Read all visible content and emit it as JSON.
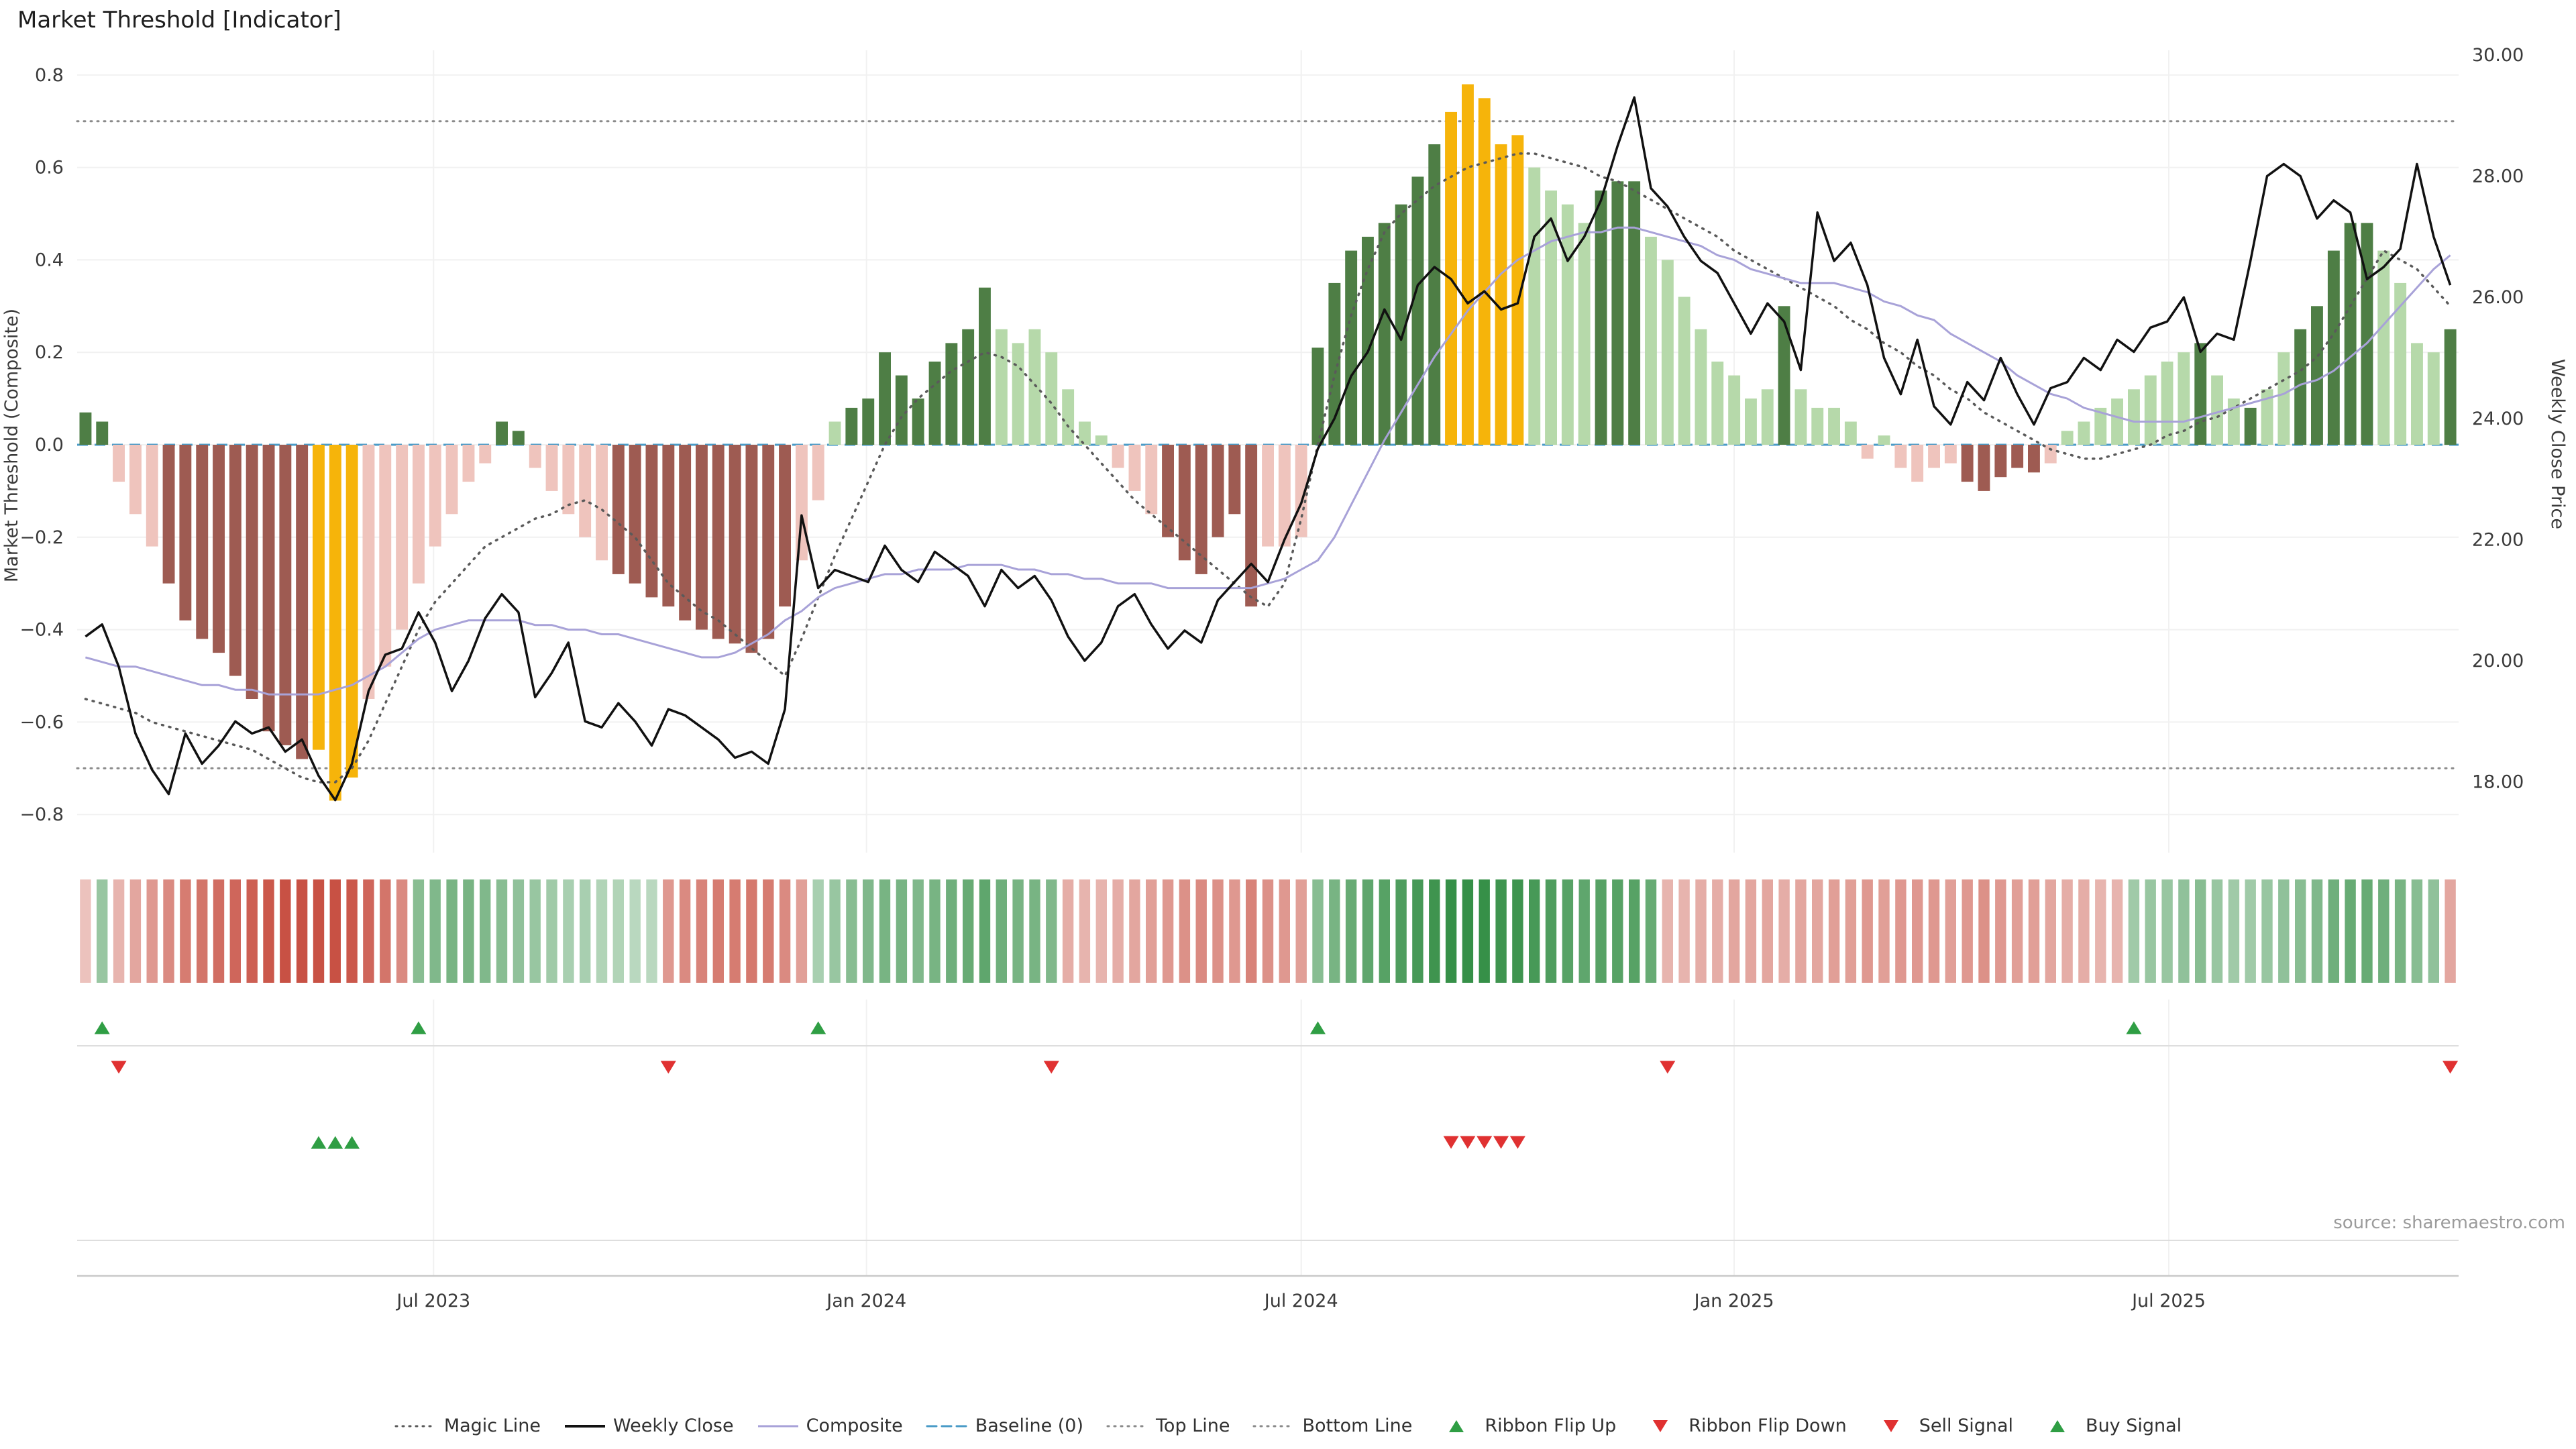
{
  "title": "Market Threshold [Indicator]",
  "source": "source: sharemaestro.com",
  "axes": {
    "left_label": "Market Threshold (Composite)",
    "right_label": "Weekly Close Price"
  },
  "colors": {
    "weekly_close": "#111111",
    "composite_line": "#a8a2d8",
    "magic_line": "#5a5a5a",
    "baseline": "#4a9bc7",
    "top_bottom_line": "#8a8a8a",
    "ribbon_green": "#2e8b40",
    "ribbon_red": "#c64a3c",
    "signal_green": "#2f9e44",
    "signal_red": "#e03131",
    "grid": "#f1f1f1",
    "panel_line": "#dedede",
    "axis_text": "#3a3a3a"
  },
  "legend": {
    "items": [
      {
        "id": "magic-line",
        "label": "Magic Line",
        "type": "line",
        "color": "#5a5a5a",
        "dash": "2 8",
        "weight": 3
      },
      {
        "id": "weekly-close",
        "label": "Weekly Close",
        "type": "line",
        "color": "#111111",
        "weight": 4
      },
      {
        "id": "composite",
        "label": "Composite",
        "type": "line",
        "color": "#a8a2d8",
        "weight": 3
      },
      {
        "id": "baseline",
        "label": "Baseline (0)",
        "type": "line",
        "color": "#4a9bc7",
        "dash": "14 8",
        "weight": 3
      },
      {
        "id": "top-line",
        "label": "Top Line",
        "type": "line",
        "color": "#8a8a8a",
        "dash": "2 8",
        "weight": 3
      },
      {
        "id": "bottom-line",
        "label": "Bottom Line",
        "type": "line",
        "color": "#8a8a8a",
        "dash": "2 8",
        "weight": 3
      },
      {
        "id": "ribbon-flip-up",
        "label": "Ribbon Flip Up",
        "type": "tri-up",
        "color": "#2f9e44"
      },
      {
        "id": "ribbon-flip-down",
        "label": "Ribbon Flip Down",
        "type": "tri-down",
        "color": "#e03131"
      },
      {
        "id": "sell-signal",
        "label": "Sell Signal",
        "type": "tri-down",
        "color": "#e03131"
      },
      {
        "id": "buy-signal",
        "label": "Buy Signal",
        "type": "tri-up",
        "color": "#2f9e44"
      }
    ]
  },
  "chart_data": {
    "type": "combo",
    "title": "Market Threshold [Indicator]",
    "left_ylim": [
      -0.8,
      0.8
    ],
    "right_ylim": [
      18,
      30
    ],
    "top_line": 0.7,
    "bottom_line": -0.7,
    "baseline": 0,
    "left_ticks": [
      [
        0.8,
        "0.8"
      ],
      [
        0.6,
        "0.6"
      ],
      [
        0.4,
        "0.4"
      ],
      [
        0.2,
        "0.2"
      ],
      [
        0,
        "0.0"
      ],
      [
        -0.2,
        "−0.2"
      ],
      [
        -0.4,
        "−0.4"
      ],
      [
        -0.6,
        "−0.6"
      ],
      [
        -0.8,
        "−0.8"
      ]
    ],
    "right_ticks": [
      [
        30,
        "30.00"
      ],
      [
        28,
        "28.00"
      ],
      [
        26,
        "26.00"
      ],
      [
        24,
        "24.00"
      ],
      [
        22,
        "22.00"
      ],
      [
        20,
        "20.00"
      ],
      [
        18,
        "18.00"
      ]
    ],
    "x_ticks": [
      [
        20.9,
        "Jul 2023"
      ],
      [
        46.9,
        "Jan 2024"
      ],
      [
        73,
        "Jul 2024"
      ],
      [
        99,
        "Jan 2025"
      ],
      [
        125.1,
        "Jul 2025"
      ]
    ],
    "composite_bars": {
      "palette": {
        "dg": "#4e7e45",
        "lg": "#b6d9aa",
        "dr": "#9e5b52",
        "lr": "#efc4bd",
        "or": "#f6b40a"
      },
      "values": [
        0.07,
        0.05,
        -0.08,
        -0.15,
        -0.22,
        -0.3,
        -0.38,
        -0.42,
        -0.45,
        -0.5,
        -0.55,
        -0.62,
        -0.65,
        -0.68,
        -0.66,
        -0.77,
        -0.72,
        -0.55,
        -0.48,
        -0.4,
        -0.3,
        -0.22,
        -0.15,
        -0.08,
        -0.04,
        0.05,
        0.03,
        -0.05,
        -0.1,
        -0.15,
        -0.2,
        -0.25,
        -0.28,
        -0.3,
        -0.33,
        -0.35,
        -0.38,
        -0.4,
        -0.42,
        -0.43,
        -0.45,
        -0.42,
        -0.35,
        -0.25,
        -0.12,
        0.05,
        0.08,
        0.1,
        0.2,
        0.15,
        0.1,
        0.18,
        0.22,
        0.25,
        0.34,
        0.25,
        0.22,
        0.25,
        0.2,
        0.12,
        0.05,
        0.02,
        -0.05,
        -0.1,
        -0.15,
        -0.2,
        -0.25,
        -0.28,
        -0.2,
        -0.15,
        -0.35,
        -0.22,
        -0.22,
        -0.2,
        0.21,
        0.35,
        0.42,
        0.45,
        0.48,
        0.52,
        0.58,
        0.65,
        0.72,
        0.78,
        0.75,
        0.65,
        0.67,
        0.6,
        0.55,
        0.52,
        0.48,
        0.55,
        0.57,
        0.57,
        0.45,
        0.4,
        0.32,
        0.25,
        0.18,
        0.15,
        0.1,
        0.12,
        0.3,
        0.12,
        0.08,
        0.08,
        0.05,
        -0.03,
        0.02,
        -0.05,
        -0.08,
        -0.05,
        -0.04,
        -0.08,
        -0.1,
        -0.07,
        -0.05,
        -0.06,
        -0.04,
        0.03,
        0.05,
        0.08,
        0.1,
        0.12,
        0.15,
        0.18,
        0.2,
        0.22,
        0.15,
        0.1,
        0.08,
        0.12,
        0.2,
        0.25,
        0.3,
        0.42,
        0.48,
        0.48,
        0.42,
        0.35,
        0.22,
        0.2,
        0.25
      ],
      "colors": [
        "dg",
        "dg",
        "lr",
        "lr",
        "lr",
        "dr",
        "dr",
        "dr",
        "dr",
        "dr",
        "dr",
        "dr",
        "dr",
        "dr",
        "or",
        "or",
        "or",
        "lr",
        "lr",
        "lr",
        "lr",
        "lr",
        "lr",
        "lr",
        "lr",
        "dg",
        "dg",
        "lr",
        "lr",
        "lr",
        "lr",
        "lr",
        "dr",
        "dr",
        "dr",
        "dr",
        "dr",
        "dr",
        "dr",
        "dr",
        "dr",
        "dr",
        "dr",
        "lr",
        "lr",
        "lg",
        "dg",
        "dg",
        "dg",
        "dg",
        "dg",
        "dg",
        "dg",
        "dg",
        "dg",
        "lg",
        "lg",
        "lg",
        "lg",
        "lg",
        "lg",
        "lg",
        "lr",
        "lr",
        "lr",
        "dr",
        "dr",
        "dr",
        "dr",
        "dr",
        "dr",
        "lr",
        "lr",
        "lr",
        "dg",
        "dg",
        "dg",
        "dg",
        "dg",
        "dg",
        "dg",
        "dg",
        "or",
        "or",
        "or",
        "or",
        "or",
        "lg",
        "lg",
        "lg",
        "lg",
        "dg",
        "dg",
        "dg",
        "lg",
        "lg",
        "lg",
        "lg",
        "lg",
        "lg",
        "lg",
        "lg",
        "dg",
        "lg",
        "lg",
        "lg",
        "lg",
        "lr",
        "lg",
        "lr",
        "lr",
        "lr",
        "lr",
        "dr",
        "dr",
        "dr",
        "dr",
        "dr",
        "lr",
        "lg",
        "lg",
        "lg",
        "lg",
        "lg",
        "lg",
        "lg",
        "lg",
        "dg",
        "lg",
        "lg",
        "dg",
        "lg",
        "lg",
        "dg",
        "dg",
        "dg",
        "dg",
        "dg",
        "lg",
        "lg",
        "lg",
        "lg",
        "dg"
      ]
    },
    "weekly_close": [
      20.4,
      20.6,
      19.9,
      18.8,
      18.2,
      17.8,
      18.8,
      18.3,
      18.6,
      19.0,
      18.8,
      18.9,
      18.5,
      18.7,
      18.1,
      17.7,
      18.3,
      19.5,
      20.1,
      20.2,
      20.8,
      20.3,
      19.5,
      20.0,
      20.7,
      21.1,
      20.8,
      19.4,
      19.8,
      20.3,
      19.0,
      18.9,
      19.3,
      19.0,
      18.6,
      19.2,
      19.1,
      18.9,
      18.7,
      18.4,
      18.5,
      18.3,
      19.2,
      22.4,
      21.2,
      21.5,
      21.4,
      21.3,
      21.9,
      21.5,
      21.3,
      21.8,
      21.6,
      21.4,
      20.9,
      21.5,
      21.2,
      21.4,
      21.0,
      20.4,
      20.0,
      20.3,
      20.9,
      21.1,
      20.6,
      20.2,
      20.5,
      20.3,
      21.0,
      21.3,
      21.6,
      21.3,
      22.0,
      22.6,
      23.5,
      24.0,
      24.7,
      25.1,
      25.8,
      25.3,
      26.2,
      26.5,
      26.3,
      25.9,
      26.1,
      25.8,
      25.9,
      27.0,
      27.3,
      26.6,
      27.0,
      27.6,
      28.5,
      29.3,
      27.8,
      27.5,
      27.0,
      26.6,
      26.4,
      25.9,
      25.4,
      25.9,
      25.6,
      24.8,
      27.4,
      26.6,
      26.9,
      26.2,
      25.0,
      24.4,
      25.3,
      24.2,
      23.9,
      24.6,
      24.3,
      25.0,
      24.4,
      23.9,
      24.5,
      24.6,
      25.0,
      24.8,
      25.3,
      25.1,
      25.5,
      25.6,
      26.0,
      25.1,
      25.4,
      25.3,
      26.6,
      28.0,
      28.2,
      28.0,
      27.3,
      27.6,
      27.4,
      26.3,
      26.5,
      26.8,
      28.2,
      27.0,
      26.2
    ],
    "composite_line": [
      -0.46,
      -0.47,
      -0.48,
      -0.48,
      -0.49,
      -0.5,
      -0.51,
      -0.52,
      -0.52,
      -0.53,
      -0.53,
      -0.54,
      -0.54,
      -0.54,
      -0.54,
      -0.53,
      -0.52,
      -0.5,
      -0.48,
      -0.45,
      -0.42,
      -0.4,
      -0.39,
      -0.38,
      -0.38,
      -0.38,
      -0.38,
      -0.39,
      -0.39,
      -0.4,
      -0.4,
      -0.41,
      -0.41,
      -0.42,
      -0.43,
      -0.44,
      -0.45,
      -0.46,
      -0.46,
      -0.45,
      -0.43,
      -0.41,
      -0.38,
      -0.36,
      -0.33,
      -0.31,
      -0.3,
      -0.29,
      -0.28,
      -0.28,
      -0.27,
      -0.27,
      -0.27,
      -0.26,
      -0.26,
      -0.26,
      -0.27,
      -0.27,
      -0.28,
      -0.28,
      -0.29,
      -0.29,
      -0.3,
      -0.3,
      -0.3,
      -0.31,
      -0.31,
      -0.31,
      -0.31,
      -0.31,
      -0.31,
      -0.3,
      -0.29,
      -0.27,
      -0.25,
      -0.2,
      -0.13,
      -0.06,
      0.01,
      0.07,
      0.13,
      0.19,
      0.24,
      0.29,
      0.33,
      0.37,
      0.4,
      0.42,
      0.44,
      0.45,
      0.46,
      0.46,
      0.47,
      0.47,
      0.46,
      0.45,
      0.44,
      0.43,
      0.41,
      0.4,
      0.38,
      0.37,
      0.36,
      0.35,
      0.35,
      0.35,
      0.34,
      0.33,
      0.31,
      0.3,
      0.28,
      0.27,
      0.24,
      0.22,
      0.2,
      0.18,
      0.15,
      0.13,
      0.11,
      0.1,
      0.08,
      0.07,
      0.06,
      0.05,
      0.05,
      0.05,
      0.05,
      0.06,
      0.07,
      0.08,
      0.09,
      0.1,
      0.11,
      0.13,
      0.14,
      0.16,
      0.19,
      0.22,
      0.26,
      0.3,
      0.34,
      0.38,
      0.41
    ],
    "magic_line": [
      -0.55,
      -0.56,
      -0.57,
      -0.58,
      -0.6,
      -0.61,
      -0.62,
      -0.63,
      -0.64,
      -0.65,
      -0.66,
      -0.68,
      -0.7,
      -0.72,
      -0.73,
      -0.73,
      -0.7,
      -0.64,
      -0.56,
      -0.48,
      -0.4,
      -0.34,
      -0.3,
      -0.26,
      -0.22,
      -0.2,
      -0.18,
      -0.16,
      -0.15,
      -0.13,
      -0.12,
      -0.14,
      -0.17,
      -0.2,
      -0.25,
      -0.3,
      -0.33,
      -0.36,
      -0.38,
      -0.41,
      -0.44,
      -0.47,
      -0.5,
      -0.42,
      -0.33,
      -0.24,
      -0.16,
      -0.08,
      0.0,
      0.06,
      0.1,
      0.13,
      0.16,
      0.18,
      0.2,
      0.19,
      0.17,
      0.13,
      0.09,
      0.04,
      0.0,
      -0.04,
      -0.08,
      -0.12,
      -0.15,
      -0.18,
      -0.21,
      -0.24,
      -0.27,
      -0.3,
      -0.33,
      -0.35,
      -0.3,
      -0.16,
      0.0,
      0.15,
      0.28,
      0.38,
      0.46,
      0.5,
      0.53,
      0.56,
      0.58,
      0.6,
      0.61,
      0.62,
      0.63,
      0.63,
      0.62,
      0.61,
      0.6,
      0.58,
      0.57,
      0.55,
      0.53,
      0.51,
      0.49,
      0.47,
      0.45,
      0.42,
      0.4,
      0.38,
      0.36,
      0.34,
      0.32,
      0.3,
      0.27,
      0.25,
      0.22,
      0.2,
      0.17,
      0.15,
      0.12,
      0.1,
      0.07,
      0.05,
      0.03,
      0.01,
      -0.01,
      -0.02,
      -0.03,
      -0.03,
      -0.02,
      -0.01,
      0.0,
      0.02,
      0.03,
      0.05,
      0.06,
      0.08,
      0.1,
      0.12,
      0.14,
      0.16,
      0.19,
      0.24,
      0.3,
      0.36,
      0.42,
      0.4,
      0.38,
      0.34,
      0.3
    ],
    "ribbon": [
      -0.2,
      0.4,
      -0.3,
      -0.4,
      -0.5,
      -0.6,
      -0.7,
      -0.75,
      -0.8,
      -0.85,
      -0.9,
      -0.95,
      -1,
      -1,
      -1,
      -1,
      -0.95,
      -0.85,
      -0.75,
      -0.6,
      0.5,
      0.55,
      0.6,
      0.6,
      0.55,
      0.5,
      0.45,
      0.4,
      0.35,
      0.3,
      0.3,
      0.25,
      0.25,
      0.2,
      0.2,
      -0.5,
      -0.6,
      -0.65,
      -0.7,
      -0.7,
      -0.72,
      -0.7,
      -0.6,
      -0.45,
      0.3,
      0.4,
      0.5,
      0.55,
      0.6,
      0.6,
      0.55,
      0.6,
      0.65,
      0.7,
      0.75,
      0.65,
      0.6,
      0.6,
      0.55,
      -0.35,
      -0.3,
      -0.3,
      -0.35,
      -0.4,
      -0.45,
      -0.5,
      -0.55,
      -0.6,
      -0.55,
      -0.5,
      -0.65,
      -0.55,
      -0.5,
      -0.45,
      0.5,
      0.6,
      0.7,
      0.75,
      0.8,
      0.85,
      0.9,
      0.95,
      1,
      1,
      1,
      0.95,
      0.95,
      0.9,
      0.85,
      0.8,
      0.75,
      0.8,
      0.8,
      0.8,
      0.7,
      -0.3,
      -0.3,
      -0.35,
      -0.35,
      -0.4,
      -0.4,
      -0.4,
      -0.35,
      -0.4,
      -0.4,
      -0.45,
      -0.45,
      -0.5,
      -0.45,
      -0.5,
      -0.5,
      -0.5,
      -0.45,
      -0.5,
      -0.55,
      -0.5,
      -0.45,
      -0.45,
      -0.4,
      -0.35,
      -0.35,
      -0.3,
      -0.3,
      0.35,
      0.4,
      0.4,
      0.45,
      0.5,
      0.4,
      0.35,
      0.35,
      0.4,
      0.45,
      0.5,
      0.55,
      0.65,
      0.7,
      0.7,
      0.65,
      0.6,
      0.5,
      0.45,
      -0.4
    ],
    "signals": {
      "ribbon_flip_up": [
        1,
        20,
        44,
        74,
        123
      ],
      "ribbon_flip_down": [
        2,
        35,
        58,
        95,
        142
      ],
      "buy": [
        14,
        15,
        16
      ],
      "sell": [
        82,
        83,
        84,
        85,
        86
      ]
    }
  }
}
